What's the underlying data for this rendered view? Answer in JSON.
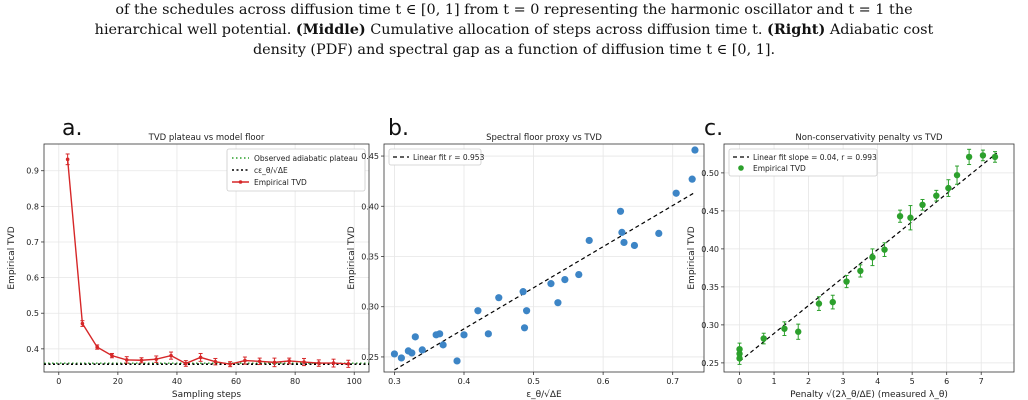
{
  "caption": {
    "line1": "of the schedules across diffusion time t ∈ [0, 1] from t = 0 representing the harmonic oscillator and t = 1 the",
    "line2a": "hierarchical well potential. ",
    "line2b": "(Middle)",
    "line2c": " Cumulative allocation of steps across diffusion time t. ",
    "line2d": "(Right)",
    "line2e": " Adiabatic cost",
    "line3": "density (PDF) and spectral gap as a function of diffusion time t ∈ [0, 1]."
  },
  "chart_data": [
    {
      "panel_label": "a.",
      "type": "line",
      "title": "TVD plateau vs model floor",
      "xlabel": "Sampling steps",
      "ylabel": "Empirical TVD",
      "xlim": [
        -5,
        105
      ],
      "ylim": [
        0.335,
        0.975
      ],
      "xticks": [
        0,
        20,
        40,
        60,
        80,
        100
      ],
      "yticks": [
        0.4,
        0.5,
        0.6,
        0.7,
        0.8,
        0.9
      ],
      "grid": true,
      "legend_position": "upper-right",
      "legend": [
        "Observed adiabatic plateau",
        "cε_θ/√ΔE",
        "Empirical TVD"
      ],
      "plateau": 0.357,
      "floor": 0.357,
      "colors": {
        "tvd": "#d62728",
        "plateau": "#2ca02c",
        "floor": "#000000"
      },
      "series": [
        {
          "name": "Empirical TVD",
          "x": [
            3,
            8,
            13,
            18,
            23,
            28,
            33,
            38,
            43,
            48,
            53,
            58,
            63,
            68,
            73,
            78,
            83,
            88,
            93,
            98
          ],
          "y": [
            0.932,
            0.471,
            0.405,
            0.381,
            0.369,
            0.368,
            0.371,
            0.381,
            0.359,
            0.376,
            0.364,
            0.357,
            0.367,
            0.365,
            0.362,
            0.366,
            0.363,
            0.36,
            0.36,
            0.358
          ],
          "err": [
            0.015,
            0.008,
            0.006,
            0.006,
            0.009,
            0.007,
            0.009,
            0.01,
            0.008,
            0.011,
            0.009,
            0.007,
            0.01,
            0.009,
            0.012,
            0.008,
            0.01,
            0.009,
            0.011,
            0.01
          ]
        }
      ]
    },
    {
      "panel_label": "b.",
      "type": "scatter",
      "title": "Spectral floor proxy vs TVD",
      "xlabel": "ε_θ/√ΔE",
      "ylabel": "Empirical TVD",
      "xlim": [
        0.285,
        0.745
      ],
      "ylim": [
        0.235,
        0.462
      ],
      "xticks": [
        0.3,
        0.4,
        0.5,
        0.6,
        0.7
      ],
      "yticks": [
        0.25,
        0.3,
        0.35,
        0.4,
        0.45
      ],
      "grid": true,
      "legend_position": "upper-left",
      "legend": [
        "Linear fit  r = 0.953"
      ],
      "colors": {
        "points": "#3d85c6",
        "fit": "#000000"
      },
      "fit": {
        "x": [
          0.3,
          0.73
        ],
        "y": [
          0.237,
          0.413
        ]
      },
      "series": [
        {
          "name": "",
          "x": [
            0.3,
            0.31,
            0.32,
            0.325,
            0.33,
            0.34,
            0.36,
            0.365,
            0.37,
            0.39,
            0.4,
            0.42,
            0.435,
            0.45,
            0.485,
            0.487,
            0.49,
            0.525,
            0.535,
            0.545,
            0.565,
            0.58,
            0.625,
            0.627,
            0.63,
            0.645,
            0.68,
            0.705,
            0.728,
            0.732
          ],
          "y": [
            0.253,
            0.249,
            0.256,
            0.254,
            0.27,
            0.257,
            0.272,
            0.273,
            0.262,
            0.246,
            0.272,
            0.296,
            0.273,
            0.309,
            0.315,
            0.279,
            0.296,
            0.323,
            0.304,
            0.327,
            0.332,
            0.366,
            0.395,
            0.374,
            0.364,
            0.361,
            0.373,
            0.413,
            0.427,
            0.456
          ]
        }
      ]
    },
    {
      "panel_label": "c.",
      "type": "scatter",
      "title": "Non-conservativity penalty vs TVD",
      "xlabel": "Penalty √(2λ_θ/ΔE)  (measured λ_θ)",
      "ylabel": "Empirical TVD",
      "xlim": [
        -0.45,
        7.95
      ],
      "ylim": [
        0.238,
        0.538
      ],
      "xticks": [
        0,
        1,
        2,
        3,
        4,
        5,
        6,
        7
      ],
      "yticks": [
        0.25,
        0.3,
        0.35,
        0.4,
        0.45,
        0.5
      ],
      "grid": true,
      "legend_position": "upper-left",
      "legend": [
        "Linear fit  slope = 0.04, r = 0.993",
        "Empirical TVD"
      ],
      "colors": {
        "points": "#2ca02c",
        "fit": "#000000"
      },
      "fit": {
        "x": [
          0,
          7.45
        ],
        "y": [
          0.252,
          0.526
        ]
      },
      "series": [
        {
          "name": "Empirical TVD",
          "x": [
            0,
            0,
            0,
            0.7,
            1.3,
            1.7,
            2.3,
            2.7,
            3.1,
            3.5,
            3.85,
            4.2,
            4.65,
            4.95,
            5.3,
            5.7,
            6.05,
            6.3,
            6.65,
            7.05,
            7.4
          ],
          "y": [
            0.256,
            0.262,
            0.268,
            0.282,
            0.295,
            0.291,
            0.328,
            0.33,
            0.357,
            0.371,
            0.389,
            0.399,
            0.443,
            0.441,
            0.458,
            0.47,
            0.48,
            0.497,
            0.521,
            0.523,
            0.521
          ],
          "err": [
            0.008,
            0.007,
            0.008,
            0.007,
            0.009,
            0.01,
            0.009,
            0.009,
            0.008,
            0.008,
            0.011,
            0.009,
            0.008,
            0.016,
            0.007,
            0.007,
            0.011,
            0.012,
            0.01,
            0.007,
            0.007
          ]
        }
      ]
    }
  ]
}
